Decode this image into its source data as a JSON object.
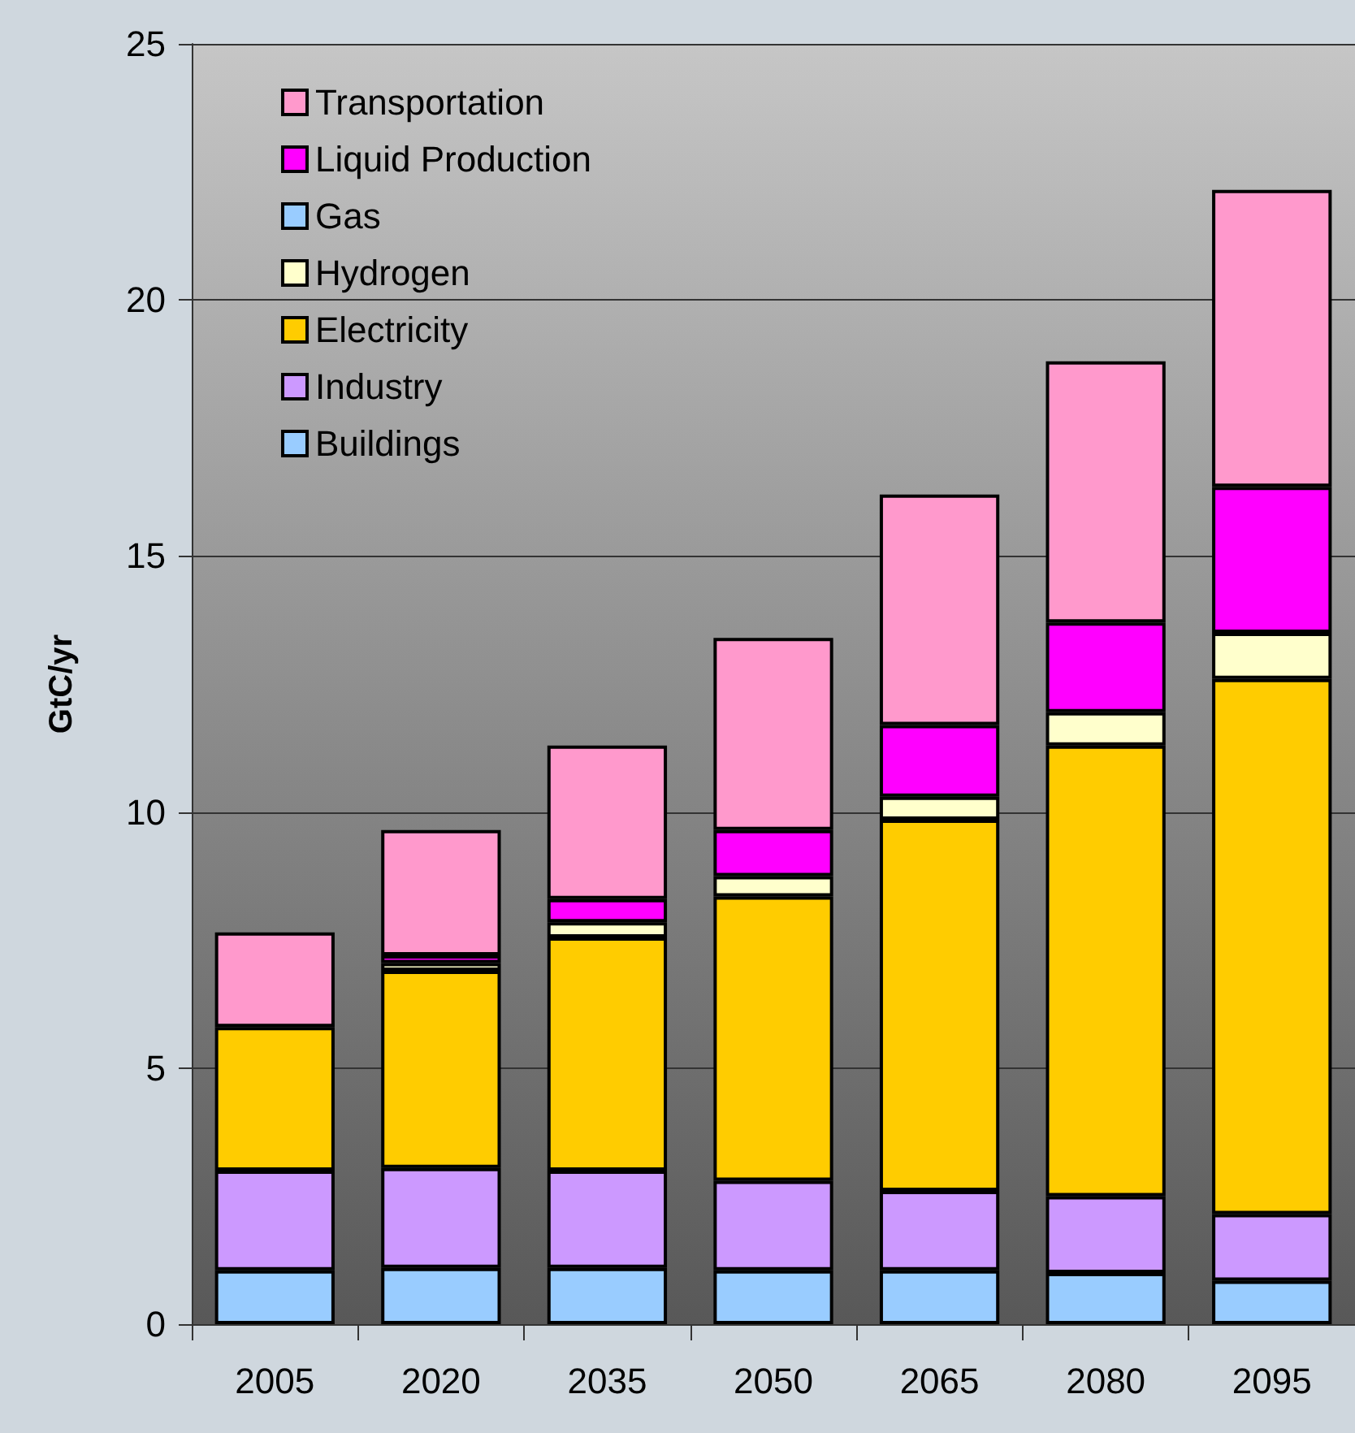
{
  "chart_data": {
    "type": "bar",
    "stacked": true,
    "ylabel": "GtC/yr",
    "categories": [
      "2005",
      "2020",
      "2035",
      "2050",
      "2065",
      "2080",
      "2095"
    ],
    "ylim": [
      0,
      25
    ],
    "yticks": [
      0,
      5,
      10,
      15,
      20,
      25
    ],
    "grid": "y",
    "legend": "top left",
    "series": [
      {
        "name": "Buildings",
        "color": "#99ccff",
        "values": [
          1.05,
          1.1,
          1.1,
          1.05,
          1.05,
          1.0,
          0.85
        ]
      },
      {
        "name": "Industry",
        "color": "#cc99ff",
        "values": [
          1.95,
          1.95,
          1.9,
          1.75,
          1.55,
          1.5,
          1.3
        ]
      },
      {
        "name": "Electricity",
        "color": "#ffcc00",
        "values": [
          2.8,
          3.85,
          4.55,
          5.55,
          7.25,
          8.8,
          10.45
        ]
      },
      {
        "name": "Hydrogen",
        "color": "#ffffcc",
        "values": [
          null,
          0.15,
          0.3,
          0.4,
          0.45,
          0.65,
          0.9
        ]
      },
      {
        "name": "Gas",
        "color": "#99ccff",
        "values": [
          null,
          null,
          null,
          null,
          null,
          null,
          null
        ]
      },
      {
        "name": "Liquid Production",
        "color": "#ff00ff",
        "values": [
          null,
          0.15,
          0.45,
          0.9,
          1.4,
          1.75,
          2.85
        ]
      },
      {
        "name": "Transportation",
        "color": "#ff99cc",
        "values": [
          1.85,
          2.45,
          3.0,
          3.75,
          4.5,
          5.1,
          5.8
        ]
      }
    ]
  }
}
